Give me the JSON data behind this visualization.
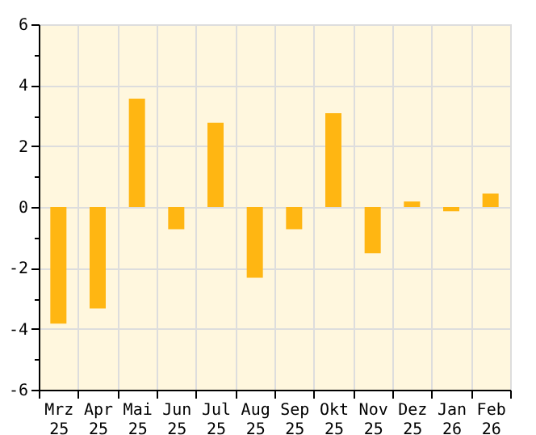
{
  "chart_data": {
    "type": "bar",
    "categories": [
      "Mrz 25",
      "Apr 25",
      "Mai 25",
      "Jun 25",
      "Jul 25",
      "Aug 25",
      "Sep 25",
      "Okt 25",
      "Nov 25",
      "Dez 25",
      "Jan 26",
      "Feb 26"
    ],
    "values": [
      -3.83,
      -3.33,
      3.56,
      -0.73,
      2.77,
      -2.32,
      -0.73,
      3.08,
      -1.52,
      0.18,
      -0.14,
      0.44
    ],
    "color": "#ffb612",
    "ylim": [
      -6,
      6
    ],
    "yticks": [
      -6,
      {
        "value": -5,
        "label": null
      },
      -4,
      {
        "value": -3,
        "label": null
      },
      -2,
      {
        "value": -1,
        "label": null
      },
      0,
      {
        "value": 1,
        "label": null
      },
      2,
      {
        "value": 3,
        "label": null
      },
      4,
      {
        "value": 5,
        "label": null
      },
      6
    ],
    "grid": true
  }
}
